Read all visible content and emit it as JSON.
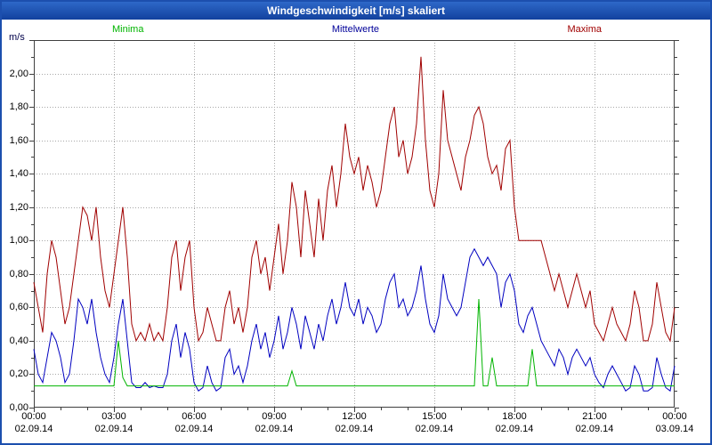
{
  "window": {
    "title": "Windgeschwindigkeit [m/s] skaliert"
  },
  "legend": [
    {
      "label": "Minima",
      "color": "#00b400"
    },
    {
      "label": "Mittelwerte",
      "color": "#000099"
    },
    {
      "label": "Maxima",
      "color": "#a00000"
    }
  ],
  "chart_data": {
    "type": "line",
    "title": "Windgeschwindigkeit [m/s] skaliert",
    "xlabel": "",
    "ylabel": "m/s",
    "ylim": [
      0,
      2.2
    ],
    "ytick_step": 0.2,
    "ytick_labels": [
      "0,00",
      "0,20",
      "0,40",
      "0,60",
      "0,80",
      "1,00",
      "1,20",
      "1,40",
      "1,60",
      "1,80",
      "2,00"
    ],
    "x_hours_range": [
      0,
      24
    ],
    "sample_interval_minutes": 10,
    "xtick_hours": [
      0,
      3,
      6,
      9,
      12,
      15,
      18,
      21,
      24
    ],
    "xtick_labels": [
      "00:00",
      "03:00",
      "06:00",
      "09:00",
      "12:00",
      "15:00",
      "18:00",
      "21:00",
      "00:00"
    ],
    "xdate_labels": [
      "02.09.14",
      "02.09.14",
      "02.09.14",
      "02.09.14",
      "02.09.14",
      "02.09.14",
      "02.09.14",
      "02.09.14",
      "03.09.14"
    ],
    "grid": true,
    "legend_position": "top",
    "series": [
      {
        "name": "Maxima",
        "color": "#a00000",
        "values": [
          0.75,
          0.6,
          0.45,
          0.8,
          1.0,
          0.9,
          0.7,
          0.5,
          0.6,
          0.8,
          1.0,
          1.2,
          1.15,
          1.0,
          1.2,
          0.9,
          0.7,
          0.6,
          0.8,
          1.0,
          1.2,
          0.9,
          0.5,
          0.4,
          0.45,
          0.4,
          0.5,
          0.4,
          0.45,
          0.4,
          0.6,
          0.9,
          1.0,
          0.7,
          0.9,
          1.0,
          0.6,
          0.4,
          0.45,
          0.6,
          0.5,
          0.4,
          0.4,
          0.6,
          0.7,
          0.5,
          0.6,
          0.45,
          0.6,
          0.9,
          1.0,
          0.8,
          0.9,
          0.7,
          0.9,
          1.1,
          0.8,
          1.0,
          1.35,
          1.2,
          0.9,
          1.3,
          1.1,
          0.9,
          1.25,
          1.0,
          1.3,
          1.45,
          1.2,
          1.4,
          1.7,
          1.5,
          1.4,
          1.5,
          1.3,
          1.45,
          1.35,
          1.2,
          1.3,
          1.5,
          1.7,
          1.8,
          1.5,
          1.6,
          1.4,
          1.5,
          1.7,
          2.1,
          1.6,
          1.3,
          1.2,
          1.4,
          1.9,
          1.6,
          1.5,
          1.4,
          1.3,
          1.5,
          1.6,
          1.75,
          1.8,
          1.7,
          1.5,
          1.4,
          1.45,
          1.3,
          1.55,
          1.6,
          1.2,
          1.0,
          1.0,
          1.0,
          1.0,
          1.0,
          1.0,
          0.9,
          0.8,
          0.7,
          0.8,
          0.7,
          0.6,
          0.7,
          0.8,
          0.7,
          0.6,
          0.7,
          0.5,
          0.45,
          0.4,
          0.5,
          0.6,
          0.5,
          0.45,
          0.4,
          0.5,
          0.7,
          0.6,
          0.4,
          0.4,
          0.5,
          0.75,
          0.6,
          0.45,
          0.4,
          0.6
        ]
      },
      {
        "name": "Mittelwerte",
        "color": "#0000c0",
        "values": [
          0.35,
          0.2,
          0.15,
          0.3,
          0.45,
          0.4,
          0.3,
          0.15,
          0.2,
          0.4,
          0.65,
          0.6,
          0.5,
          0.65,
          0.45,
          0.3,
          0.2,
          0.15,
          0.3,
          0.5,
          0.65,
          0.4,
          0.15,
          0.12,
          0.12,
          0.15,
          0.12,
          0.13,
          0.12,
          0.12,
          0.2,
          0.4,
          0.5,
          0.3,
          0.45,
          0.35,
          0.15,
          0.1,
          0.12,
          0.25,
          0.15,
          0.1,
          0.12,
          0.3,
          0.35,
          0.2,
          0.25,
          0.15,
          0.25,
          0.4,
          0.5,
          0.35,
          0.45,
          0.3,
          0.4,
          0.55,
          0.35,
          0.45,
          0.6,
          0.5,
          0.35,
          0.55,
          0.45,
          0.35,
          0.5,
          0.4,
          0.55,
          0.65,
          0.5,
          0.6,
          0.75,
          0.6,
          0.55,
          0.65,
          0.5,
          0.6,
          0.55,
          0.45,
          0.5,
          0.65,
          0.75,
          0.8,
          0.6,
          0.65,
          0.55,
          0.6,
          0.7,
          0.85,
          0.65,
          0.5,
          0.45,
          0.55,
          0.8,
          0.65,
          0.6,
          0.55,
          0.6,
          0.75,
          0.9,
          0.95,
          0.9,
          0.85,
          0.9,
          0.85,
          0.8,
          0.6,
          0.75,
          0.8,
          0.7,
          0.5,
          0.45,
          0.55,
          0.6,
          0.5,
          0.4,
          0.35,
          0.3,
          0.25,
          0.35,
          0.3,
          0.2,
          0.3,
          0.35,
          0.3,
          0.25,
          0.3,
          0.2,
          0.15,
          0.12,
          0.2,
          0.25,
          0.2,
          0.15,
          0.1,
          0.12,
          0.25,
          0.2,
          0.1,
          0.1,
          0.12,
          0.3,
          0.2,
          0.12,
          0.1,
          0.25
        ]
      },
      {
        "name": "Minima",
        "color": "#00b400",
        "values": [
          0.13,
          0.13,
          0.13,
          0.13,
          0.13,
          0.13,
          0.13,
          0.13,
          0.13,
          0.13,
          0.13,
          0.13,
          0.13,
          0.13,
          0.13,
          0.13,
          0.13,
          0.13,
          0.13,
          0.4,
          0.18,
          0.13,
          0.13,
          0.13,
          0.13,
          0.13,
          0.13,
          0.13,
          0.13,
          0.13,
          0.13,
          0.13,
          0.13,
          0.13,
          0.13,
          0.13,
          0.13,
          0.13,
          0.13,
          0.13,
          0.13,
          0.13,
          0.13,
          0.13,
          0.13,
          0.13,
          0.13,
          0.13,
          0.13,
          0.13,
          0.13,
          0.13,
          0.13,
          0.13,
          0.13,
          0.13,
          0.13,
          0.13,
          0.22,
          0.13,
          0.13,
          0.13,
          0.13,
          0.13,
          0.13,
          0.13,
          0.13,
          0.13,
          0.13,
          0.13,
          0.13,
          0.13,
          0.13,
          0.13,
          0.13,
          0.13,
          0.13,
          0.13,
          0.13,
          0.13,
          0.13,
          0.13,
          0.13,
          0.13,
          0.13,
          0.13,
          0.13,
          0.13,
          0.13,
          0.13,
          0.13,
          0.13,
          0.13,
          0.13,
          0.13,
          0.13,
          0.13,
          0.13,
          0.13,
          0.13,
          0.65,
          0.13,
          0.13,
          0.3,
          0.13,
          0.13,
          0.13,
          0.13,
          0.13,
          0.13,
          0.13,
          0.13,
          0.35,
          0.13,
          0.13,
          0.13,
          0.13,
          0.13,
          0.13,
          0.13,
          0.13,
          0.13,
          0.13,
          0.13,
          0.13,
          0.13,
          0.13,
          0.13,
          0.13,
          0.13,
          0.13,
          0.13,
          0.13,
          0.13,
          0.13,
          0.13,
          0.13,
          0.13,
          0.13,
          0.13,
          0.13,
          0.13,
          0.13,
          0.13,
          0.13
        ]
      }
    ]
  }
}
